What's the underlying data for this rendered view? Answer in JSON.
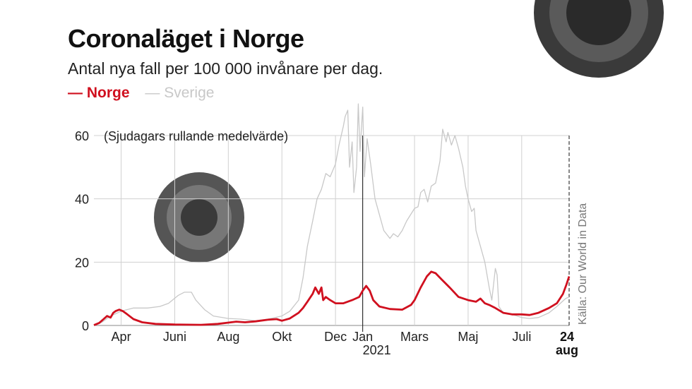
{
  "header": {
    "title": "Coronaläget i Norge",
    "subtitle": "Antal nya fall per 100 000 invånare per dag."
  },
  "legend": {
    "norway": {
      "label": "Norge",
      "color": "#d0101f"
    },
    "sweden": {
      "label": "Sverige",
      "color": "#c8c8c8"
    }
  },
  "decorations": [
    "virus-illustration-top-right",
    "virus-illustration-in-plot"
  ],
  "chart_data": {
    "type": "line",
    "title": "Coronaläget i Norge",
    "subtitle": "Antal nya fall per 100 000 invånare per dag.",
    "annotation": "(Sjudagars rullande medelvärde)",
    "source": "Källa: Our World in Data",
    "ylim": [
      0,
      60
    ],
    "y_ticks": [
      "0",
      "20",
      "40",
      "60"
    ],
    "x_start": "2020-03-01",
    "x_end": "2021-08-24",
    "x_ticks": [
      {
        "date": "2020-04-01",
        "label": "Apr"
      },
      {
        "date": "2020-06-01",
        "label": "Juni"
      },
      {
        "date": "2020-08-01",
        "label": "Aug"
      },
      {
        "date": "2020-10-01",
        "label": "Okt"
      },
      {
        "date": "2020-12-01",
        "label": "Dec"
      },
      {
        "date": "2021-01-01",
        "label": "Jan"
      },
      {
        "date": "2021-03-01",
        "label": "Mars"
      },
      {
        "date": "2021-05-01",
        "label": "Maj"
      },
      {
        "date": "2021-07-01",
        "label": "Juli"
      }
    ],
    "year_label": "2021",
    "year_divider_date": "2021-01-01",
    "end_label": {
      "date": "2021-08-24",
      "day": "24",
      "month": "aug"
    },
    "grid": true,
    "series": [
      {
        "name": "Sverige",
        "color": "#c8c8c8",
        "points": [
          [
            "2020-03-01",
            0.1
          ],
          [
            "2020-03-10",
            1.0
          ],
          [
            "2020-03-20",
            3.0
          ],
          [
            "2020-04-01",
            4.5
          ],
          [
            "2020-04-15",
            5.5
          ],
          [
            "2020-05-01",
            5.5
          ],
          [
            "2020-05-15",
            6.0
          ],
          [
            "2020-05-25",
            7.0
          ],
          [
            "2020-06-05",
            9.5
          ],
          [
            "2020-06-12",
            10.5
          ],
          [
            "2020-06-20",
            10.5
          ],
          [
            "2020-06-25",
            8.0
          ],
          [
            "2020-07-05",
            5.0
          ],
          [
            "2020-07-15",
            3.0
          ],
          [
            "2020-08-01",
            2.2
          ],
          [
            "2020-08-15",
            2.0
          ],
          [
            "2020-09-01",
            1.5
          ],
          [
            "2020-09-15",
            2.0
          ],
          [
            "2020-10-01",
            3.0
          ],
          [
            "2020-10-10",
            4.5
          ],
          [
            "2020-10-20",
            8.0
          ],
          [
            "2020-10-25",
            15.0
          ],
          [
            "2020-10-30",
            25.0
          ],
          [
            "2020-11-05",
            33.0
          ],
          [
            "2020-11-10",
            40.0
          ],
          [
            "2020-11-15",
            43.0
          ],
          [
            "2020-11-20",
            48.0
          ],
          [
            "2020-11-25",
            47.0
          ],
          [
            "2020-12-01",
            51.0
          ],
          [
            "2020-12-05",
            57.0
          ],
          [
            "2020-12-10",
            63.0
          ],
          [
            "2020-12-12",
            66.0
          ],
          [
            "2020-12-15",
            68.0
          ],
          [
            "2020-12-17",
            50.0
          ],
          [
            "2020-12-20",
            58.0
          ],
          [
            "2020-12-22",
            42.0
          ],
          [
            "2020-12-25",
            50.0
          ],
          [
            "2020-12-27",
            70.0
          ],
          [
            "2020-12-29",
            55.0
          ],
          [
            "2021-01-01",
            69.0
          ],
          [
            "2021-01-03",
            47.0
          ],
          [
            "2021-01-06",
            59.0
          ],
          [
            "2021-01-10",
            51.0
          ],
          [
            "2021-01-15",
            40.0
          ],
          [
            "2021-01-20",
            35.0
          ],
          [
            "2021-01-25",
            30.0
          ],
          [
            "2021-02-01",
            27.5
          ],
          [
            "2021-02-05",
            29.0
          ],
          [
            "2021-02-10",
            28.0
          ],
          [
            "2021-02-15",
            30.0
          ],
          [
            "2021-02-20",
            33.0
          ],
          [
            "2021-03-01",
            37.0
          ],
          [
            "2021-03-05",
            37.5
          ],
          [
            "2021-03-08",
            42.0
          ],
          [
            "2021-03-12",
            43.0
          ],
          [
            "2021-03-16",
            39.0
          ],
          [
            "2021-03-20",
            44.0
          ],
          [
            "2021-03-25",
            45.0
          ],
          [
            "2021-03-30",
            52.0
          ],
          [
            "2021-04-02",
            62.0
          ],
          [
            "2021-04-06",
            58.0
          ],
          [
            "2021-04-08",
            61.0
          ],
          [
            "2021-04-12",
            57.0
          ],
          [
            "2021-04-16",
            60.0
          ],
          [
            "2021-04-20",
            56.0
          ],
          [
            "2021-04-25",
            50.0
          ],
          [
            "2021-04-28",
            44.0
          ],
          [
            "2021-05-01",
            40.0
          ],
          [
            "2021-05-05",
            36.0
          ],
          [
            "2021-05-08",
            37.0
          ],
          [
            "2021-05-10",
            30.0
          ],
          [
            "2021-05-15",
            25.0
          ],
          [
            "2021-05-20",
            20.0
          ],
          [
            "2021-05-25",
            12.0
          ],
          [
            "2021-05-28",
            8.0
          ],
          [
            "2021-06-01",
            18.0
          ],
          [
            "2021-06-03",
            16.0
          ],
          [
            "2021-06-05",
            6.0
          ],
          [
            "2021-06-10",
            4.0
          ],
          [
            "2021-06-20",
            3.5
          ],
          [
            "2021-07-01",
            2.5
          ],
          [
            "2021-07-10",
            2.2
          ],
          [
            "2021-07-20",
            2.5
          ],
          [
            "2021-08-01",
            4.0
          ],
          [
            "2021-08-10",
            6.0
          ],
          [
            "2021-08-20",
            8.5
          ],
          [
            "2021-08-24",
            9.0
          ]
        ]
      },
      {
        "name": "Norge",
        "color": "#d0101f",
        "points": [
          [
            "2020-03-01",
            0.1
          ],
          [
            "2020-03-07",
            0.8
          ],
          [
            "2020-03-12",
            2.0
          ],
          [
            "2020-03-16",
            3.0
          ],
          [
            "2020-03-20",
            2.5
          ],
          [
            "2020-03-23",
            4.0
          ],
          [
            "2020-03-26",
            4.6
          ],
          [
            "2020-03-30",
            5.0
          ],
          [
            "2020-04-03",
            4.5
          ],
          [
            "2020-04-08",
            3.5
          ],
          [
            "2020-04-15",
            2.0
          ],
          [
            "2020-04-25",
            1.0
          ],
          [
            "2020-05-10",
            0.5
          ],
          [
            "2020-06-01",
            0.3
          ],
          [
            "2020-07-01",
            0.2
          ],
          [
            "2020-07-20",
            0.5
          ],
          [
            "2020-08-01",
            0.9
          ],
          [
            "2020-08-10",
            1.2
          ],
          [
            "2020-08-20",
            1.0
          ],
          [
            "2020-09-01",
            1.3
          ],
          [
            "2020-09-15",
            1.8
          ],
          [
            "2020-09-25",
            2.0
          ],
          [
            "2020-10-01",
            1.5
          ],
          [
            "2020-10-10",
            2.2
          ],
          [
            "2020-10-20",
            4.0
          ],
          [
            "2020-10-25",
            5.5
          ],
          [
            "2020-10-30",
            7.5
          ],
          [
            "2020-11-05",
            10.0
          ],
          [
            "2020-11-08",
            12.0
          ],
          [
            "2020-11-12",
            10.0
          ],
          [
            "2020-11-15",
            12.0
          ],
          [
            "2020-11-17",
            8.0
          ],
          [
            "2020-11-20",
            9.0
          ],
          [
            "2020-11-25",
            8.0
          ],
          [
            "2020-12-01",
            7.0
          ],
          [
            "2020-12-10",
            7.0
          ],
          [
            "2020-12-20",
            8.0
          ],
          [
            "2020-12-28",
            9.0
          ],
          [
            "2021-01-01",
            11.0
          ],
          [
            "2021-01-05",
            12.5
          ],
          [
            "2021-01-09",
            11.0
          ],
          [
            "2021-01-13",
            8.0
          ],
          [
            "2021-01-20",
            6.0
          ],
          [
            "2021-02-01",
            5.2
          ],
          [
            "2021-02-15",
            5.0
          ],
          [
            "2021-02-25",
            6.5
          ],
          [
            "2021-03-01",
            8.0
          ],
          [
            "2021-03-08",
            12.0
          ],
          [
            "2021-03-15",
            15.5
          ],
          [
            "2021-03-20",
            17.0
          ],
          [
            "2021-03-25",
            16.5
          ],
          [
            "2021-04-01",
            14.5
          ],
          [
            "2021-04-10",
            12.0
          ],
          [
            "2021-04-20",
            9.0
          ],
          [
            "2021-05-01",
            8.0
          ],
          [
            "2021-05-10",
            7.5
          ],
          [
            "2021-05-15",
            8.5
          ],
          [
            "2021-05-20",
            7.0
          ],
          [
            "2021-05-25",
            6.5
          ],
          [
            "2021-06-01",
            5.5
          ],
          [
            "2021-06-10",
            4.0
          ],
          [
            "2021-06-20",
            3.5
          ],
          [
            "2021-07-01",
            3.5
          ],
          [
            "2021-07-10",
            3.3
          ],
          [
            "2021-07-20",
            4.0
          ],
          [
            "2021-08-01",
            5.5
          ],
          [
            "2021-08-10",
            7.0
          ],
          [
            "2021-08-17",
            10.0
          ],
          [
            "2021-08-21",
            13.0
          ],
          [
            "2021-08-24",
            15.5
          ]
        ]
      }
    ]
  }
}
